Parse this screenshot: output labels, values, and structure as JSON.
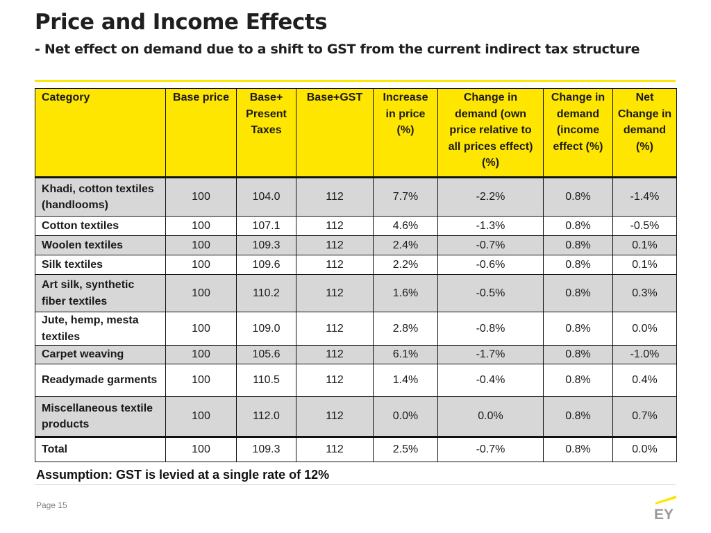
{
  "title": "Price and Income Effects",
  "subtitle": "- Net effect on demand  due to a shift to GST from the current indirect tax structure",
  "table": {
    "headers": [
      "Category",
      "Base price",
      "Base+ Present Taxes",
      "Base+GST",
      "Increase in price (%)",
      "Change in demand (own price relative to all prices effect) (%)",
      "Change in demand (income effect (%)",
      "Net Change in demand (%)"
    ],
    "rows": [
      [
        "Khadi, cotton textiles (handlooms)",
        "100",
        "104.0",
        "112",
        "7.7%",
        "-2.2%",
        "0.8%",
        "-1.4%"
      ],
      [
        "Cotton textiles",
        "100",
        "107.1",
        "112",
        "4.6%",
        "-1.3%",
        "0.8%",
        "-0.5%"
      ],
      [
        "Woolen textiles",
        "100",
        "109.3",
        "112",
        "2.4%",
        "-0.7%",
        "0.8%",
        "0.1%"
      ],
      [
        "Silk textiles",
        "100",
        "109.6",
        "112",
        "2.2%",
        "-0.6%",
        "0.8%",
        "0.1%"
      ],
      [
        "Art silk, synthetic fiber textiles",
        "100",
        "110.2",
        "112",
        "1.6%",
        "-0.5%",
        "0.8%",
        "0.3%"
      ],
      [
        "Jute, hemp, mesta textiles",
        "100",
        "109.0",
        "112",
        "2.8%",
        "-0.8%",
        "0.8%",
        "0.0%"
      ],
      [
        "Carpet weaving",
        "100",
        "105.6",
        "112",
        "6.1%",
        "-1.7%",
        "0.8%",
        "-1.0%"
      ],
      [
        "Readymade garments",
        "100",
        "110.5",
        "112",
        "1.4%",
        "-0.4%",
        "0.8%",
        "0.4%"
      ],
      [
        "Miscellaneous textile products",
        "100",
        "112.0",
        "112",
        "0.0%",
        "0.0%",
        "0.8%",
        "0.7%"
      ],
      [
        "Total",
        "100",
        "109.3",
        "112",
        "2.5%",
        "-0.7%",
        "0.8%",
        "0.0%"
      ]
    ]
  },
  "assumption": "Assumption: GST is levied at a single rate of 12%",
  "footer": {
    "page": "Page 15",
    "logo_text": "EY",
    "logo_icon": "ey-logo-icon"
  },
  "colors": {
    "accent_yellow": "#ffe600",
    "row_shade": "#d7d7d7",
    "text": "#1a1a1a"
  }
}
